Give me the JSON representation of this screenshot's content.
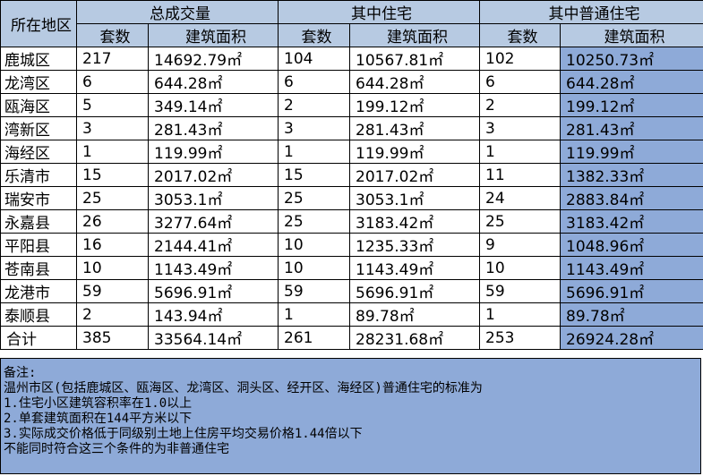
{
  "header": {
    "area_label": "所在地区",
    "groups": [
      "总成交量",
      "其中住宅",
      "其中普通住宅"
    ],
    "sub": [
      "套数",
      "建筑面积"
    ]
  },
  "rows": [
    {
      "area": "鹿城区",
      "total_sets": "217",
      "total_area": "14692.79㎡",
      "res_sets": "104",
      "res_area": "10567.81㎡",
      "ord_sets": "102",
      "ord_area": "10250.73㎡"
    },
    {
      "area": "龙湾区",
      "total_sets": "6",
      "total_area": "644.28㎡",
      "res_sets": "6",
      "res_area": "644.28㎡",
      "ord_sets": "6",
      "ord_area": "644.28㎡"
    },
    {
      "area": "瓯海区",
      "total_sets": "5",
      "total_area": "349.14㎡",
      "res_sets": "2",
      "res_area": "199.12㎡",
      "ord_sets": "2",
      "ord_area": "199.12㎡"
    },
    {
      "area": "湾新区",
      "total_sets": "3",
      "total_area": "281.43㎡",
      "res_sets": "3",
      "res_area": "281.43㎡",
      "ord_sets": "3",
      "ord_area": "281.43㎡"
    },
    {
      "area": "海经区",
      "total_sets": "1",
      "total_area": "119.99㎡",
      "res_sets": "1",
      "res_area": "119.99㎡",
      "ord_sets": "1",
      "ord_area": "119.99㎡"
    },
    {
      "area": "乐清市",
      "total_sets": "15",
      "total_area": "2017.02㎡",
      "res_sets": "15",
      "res_area": "2017.02㎡",
      "ord_sets": "11",
      "ord_area": "1382.33㎡"
    },
    {
      "area": "瑞安市",
      "total_sets": "25",
      "total_area": "3053.1㎡",
      "res_sets": "25",
      "res_area": "3053.1㎡",
      "ord_sets": "24",
      "ord_area": "2883.84㎡"
    },
    {
      "area": "永嘉县",
      "total_sets": "26",
      "total_area": "3277.64㎡",
      "res_sets": "25",
      "res_area": "3183.42㎡",
      "ord_sets": "25",
      "ord_area": "3183.42㎡"
    },
    {
      "area": "平阳县",
      "total_sets": "16",
      "total_area": "2144.41㎡",
      "res_sets": "10",
      "res_area": "1235.33㎡",
      "ord_sets": "9",
      "ord_area": "1048.96㎡"
    },
    {
      "area": "苍南县",
      "total_sets": "10",
      "total_area": "1143.49㎡",
      "res_sets": "10",
      "res_area": "1143.49㎡",
      "ord_sets": "10",
      "ord_area": "1143.49㎡"
    },
    {
      "area": "龙港市",
      "total_sets": "59",
      "total_area": "5696.91㎡",
      "res_sets": "59",
      "res_area": "5696.91㎡",
      "ord_sets": "59",
      "ord_area": "5696.91㎡"
    },
    {
      "area": "泰顺县",
      "total_sets": "2",
      "total_area": "143.94㎡",
      "res_sets": "1",
      "res_area": "89.78㎡",
      "ord_sets": "1",
      "ord_area": "89.78㎡"
    }
  ],
  "total": {
    "area": "合计",
    "total_sets": "385",
    "total_area": "33564.14㎡",
    "res_sets": "261",
    "res_area": "28231.68㎡",
    "ord_sets": "253",
    "ord_area": "26924.28㎡"
  },
  "notes": [
    "备注:",
    "温州市区(包括鹿城区、瓯海区、龙湾区、洞头区、经开区、海经区)普通住宅的标准为",
    "1.住宅小区建筑容积率在1.0以上",
    "2.单套建筑面积在144平方米以下",
    "3.实际成交价格低于同级别土地上住房平均交易价格1.44倍以下",
    "不能同时符合这三个条件的为非普通住宅"
  ],
  "colors": {
    "header_bg": "#b7cae2",
    "highlight_bg": "#8eaad8"
  }
}
